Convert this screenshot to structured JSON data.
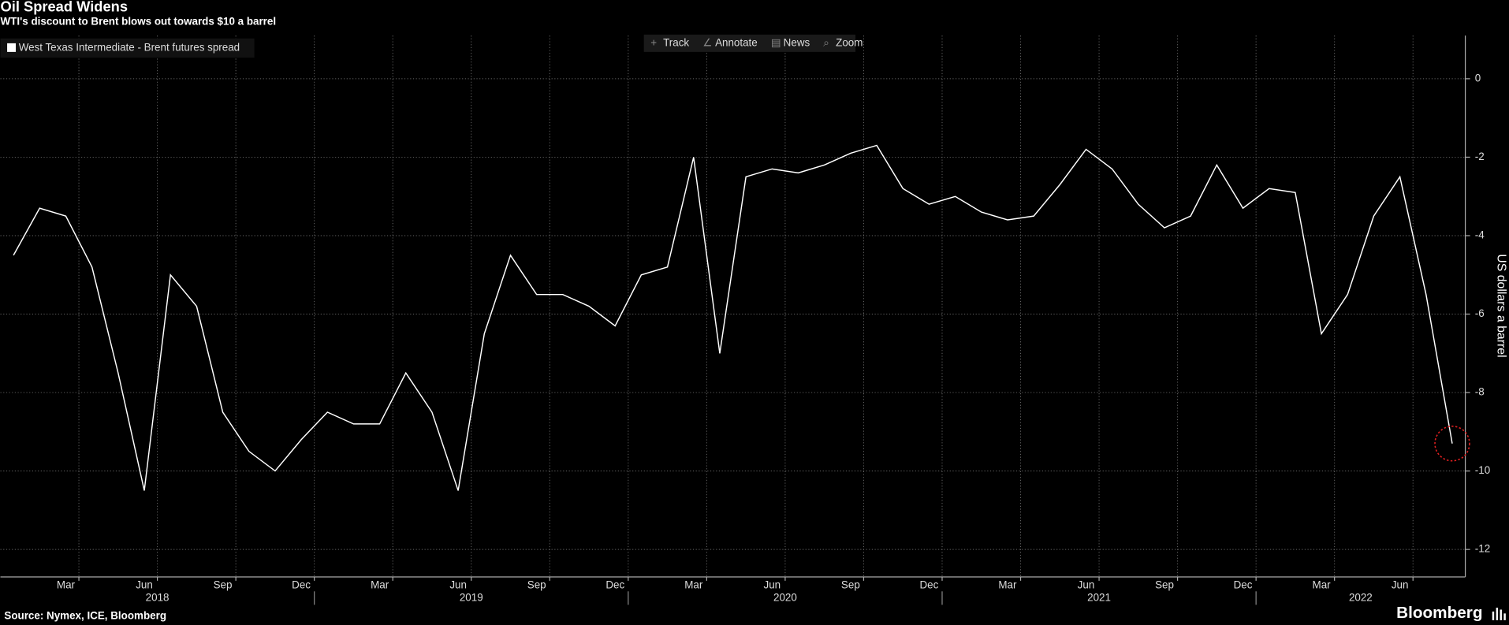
{
  "chart_data": {
    "type": "line",
    "title": "Oil Spread Widens",
    "subtitle": "WTI's discount to Brent blows out towards $10 a barrel",
    "source": "Source: Nymex, ICE, Bloomberg",
    "brand": "Bloomberg",
    "toolbar": [
      "Track",
      "Annotate",
      "News",
      "Zoom"
    ],
    "y_label": "US dollars a barrel",
    "x": [
      "2018-01",
      "2018-02",
      "2018-03",
      "2018-04",
      "2018-05",
      "2018-06",
      "2018-07",
      "2018-08",
      "2018-09",
      "2018-10",
      "2018-11",
      "2018-12",
      "2019-01",
      "2019-02",
      "2019-03",
      "2019-04",
      "2019-05",
      "2019-06",
      "2019-07",
      "2019-08",
      "2019-09",
      "2019-10",
      "2019-11",
      "2019-12",
      "2020-01",
      "2020-02",
      "2020-03",
      "2020-04",
      "2020-05",
      "2020-06",
      "2020-07",
      "2020-08",
      "2020-09",
      "2020-10",
      "2020-11",
      "2020-12",
      "2021-01",
      "2021-02",
      "2021-03",
      "2021-04",
      "2021-05",
      "2021-06",
      "2021-07",
      "2021-08",
      "2021-09",
      "2021-10",
      "2021-11",
      "2021-12",
      "2022-01",
      "2022-02",
      "2022-03",
      "2022-04",
      "2022-05",
      "2022-06",
      "2022-07",
      "2022-08"
    ],
    "series": [
      {
        "name": "West Texas Intermediate - Brent futures spread",
        "color": "#ffffff",
        "values": [
          -4.5,
          -3.3,
          -3.5,
          -4.8,
          -7.5,
          -10.5,
          -5.0,
          -5.8,
          -8.5,
          -9.5,
          -10.0,
          -9.2,
          -8.5,
          -8.8,
          -8.8,
          -7.5,
          -8.5,
          -10.5,
          -6.5,
          -4.5,
          -5.5,
          -5.5,
          -5.8,
          -6.3,
          -5.0,
          -4.8,
          -2.0,
          -7.0,
          -2.5,
          -2.3,
          -2.4,
          -2.2,
          -1.9,
          -1.7,
          -2.8,
          -3.2,
          -3.0,
          -3.4,
          -3.6,
          -3.5,
          -2.7,
          -1.8,
          -2.3,
          -3.2,
          -3.8,
          -3.5,
          -2.2,
          -3.3,
          -2.8,
          -2.9,
          -6.5,
          -5.5,
          -3.5,
          -2.5,
          -5.5,
          -9.3
        ]
      }
    ],
    "xlim": [
      "2018-01",
      "2022-08"
    ],
    "xticks": [
      {
        "value": "2018-03",
        "label": "Mar"
      },
      {
        "value": "2018-06",
        "label": "Jun"
      },
      {
        "value": "2018-09",
        "label": "Sep"
      },
      {
        "value": "2018-12",
        "label": "Dec"
      },
      {
        "value": "2019-03",
        "label": "Mar"
      },
      {
        "value": "2019-06",
        "label": "Jun"
      },
      {
        "value": "2019-09",
        "label": "Sep"
      },
      {
        "value": "2019-12",
        "label": "Dec"
      },
      {
        "value": "2020-03",
        "label": "Mar"
      },
      {
        "value": "2020-06",
        "label": "Jun"
      },
      {
        "value": "2020-09",
        "label": "Sep"
      },
      {
        "value": "2020-12",
        "label": "Dec"
      },
      {
        "value": "2021-03",
        "label": "Mar"
      },
      {
        "value": "2021-06",
        "label": "Jun"
      },
      {
        "value": "2021-09",
        "label": "Sep"
      },
      {
        "value": "2021-12",
        "label": "Dec"
      },
      {
        "value": "2022-03",
        "label": "Mar"
      },
      {
        "value": "2022-06",
        "label": "Jun"
      }
    ],
    "years": [
      "2018",
      "2019",
      "2020",
      "2021",
      "2022"
    ],
    "ylim": [
      -12.7,
      1.1
    ],
    "yticks": [
      0,
      -2,
      -4,
      -6,
      -8,
      -10,
      -12
    ],
    "grid": true,
    "legend": "top-left"
  }
}
